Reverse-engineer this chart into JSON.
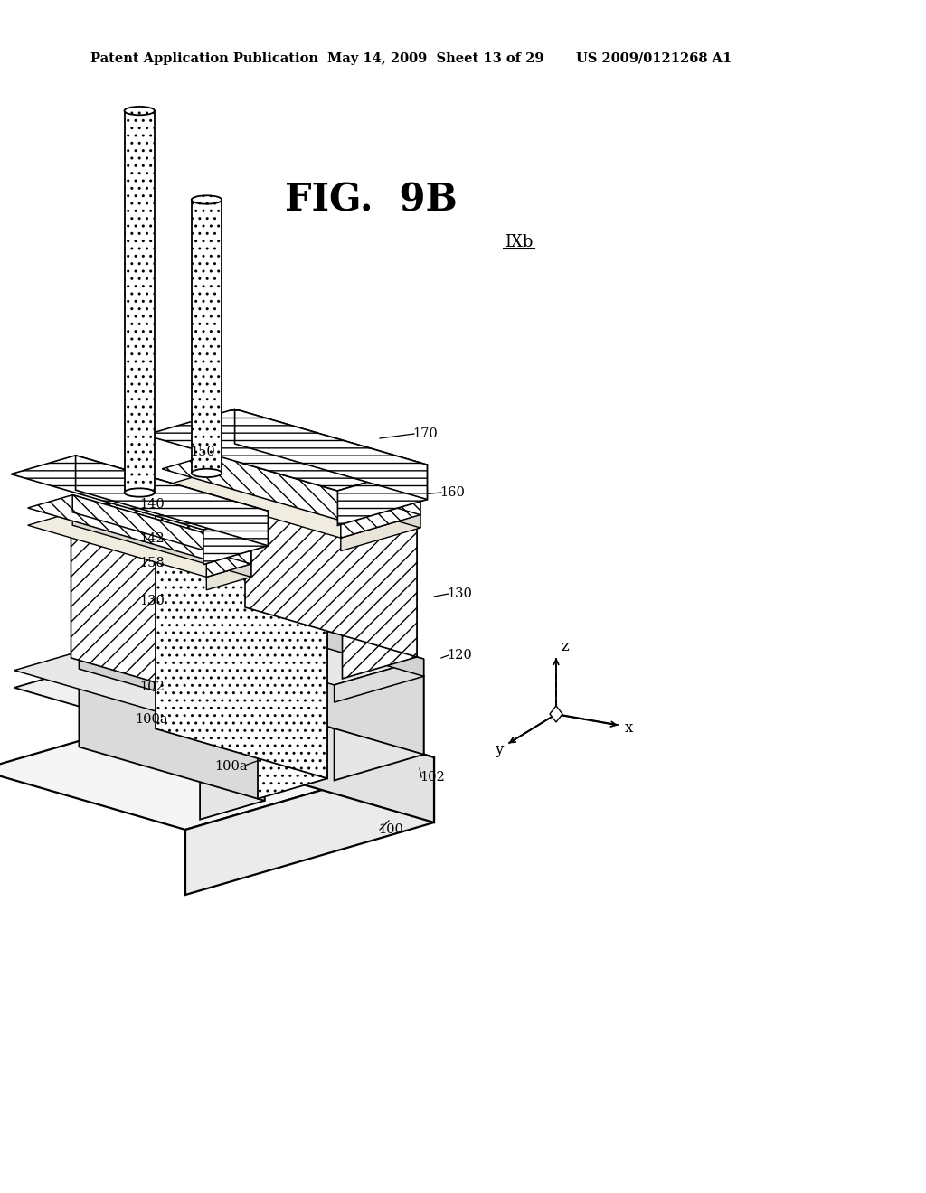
{
  "bg_color": "#ffffff",
  "header_left": "Patent Application Publication",
  "header_mid": "May 14, 2009  Sheet 13 of 29",
  "header_right": "US 2009/0121268 A1",
  "fig_title": "FIG.  9B",
  "section_label": "IXb",
  "lc": "#000000"
}
